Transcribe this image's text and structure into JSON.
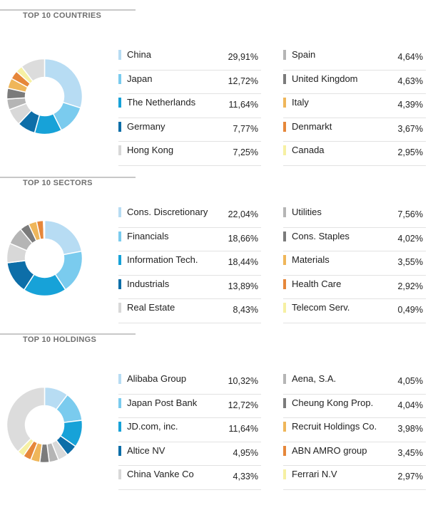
{
  "sections": [
    {
      "title": "TOP 10 COUNTRIES",
      "left": [
        {
          "label": "China",
          "value": "29,91%",
          "color": "#b7dcf3"
        },
        {
          "label": "Japan",
          "value": "12,72%",
          "color": "#7acbee"
        },
        {
          "label": "The Netherlands",
          "value": "11,64%",
          "color": "#17a2d8"
        },
        {
          "label": "Germany",
          "value": "7,77%",
          "color": "#0d6ea8"
        },
        {
          "label": "Hong Kong",
          "value": "7,25%",
          "color": "#d8d8d8"
        }
      ],
      "right": [
        {
          "label": "Spain",
          "value": "4,64%",
          "color": "#b5b5b5"
        },
        {
          "label": "United Kingdom",
          "value": "4,63%",
          "color": "#7b7b7b"
        },
        {
          "label": "Italy",
          "value": "4,39%",
          "color": "#efb65a"
        },
        {
          "label": "Denmarkt",
          "value": "3,67%",
          "color": "#e6873a"
        },
        {
          "label": "Canada",
          "value": "2,95%",
          "color": "#f6f0a3"
        }
      ]
    },
    {
      "title": "TOP 10 SECTORS",
      "left": [
        {
          "label": "Cons. Discretionary",
          "value": "22,04%",
          "color": "#b7dcf3"
        },
        {
          "label": "Financials",
          "value": "18,66%",
          "color": "#7acbee"
        },
        {
          "label": "Information Tech.",
          "value": "18,44%",
          "color": "#17a2d8"
        },
        {
          "label": "Industrials",
          "value": "13,89%",
          "color": "#0d6ea8"
        },
        {
          "label": "Real Estate",
          "value": "8,43%",
          "color": "#d8d8d8"
        }
      ],
      "right": [
        {
          "label": "Utilities",
          "value": "7,56%",
          "color": "#b5b5b5"
        },
        {
          "label": "Cons. Staples",
          "value": "4,02%",
          "color": "#7b7b7b"
        },
        {
          "label": "Materials",
          "value": "3,55%",
          "color": "#efb65a"
        },
        {
          "label": "Health Care",
          "value": "2,92%",
          "color": "#e6873a"
        },
        {
          "label": "Telecom Serv.",
          "value": "0,49%",
          "color": "#f6f0a3"
        }
      ]
    },
    {
      "title": "TOP 10 HOLDINGS",
      "left": [
        {
          "label": "Alibaba Group",
          "value": "10,32%",
          "color": "#b7dcf3"
        },
        {
          "label": "Japan Post Bank",
          "value": "12,72%",
          "color": "#7acbee"
        },
        {
          "label": "JD.com, inc.",
          "value": "11,64%",
          "color": "#17a2d8"
        },
        {
          "label": "Altice NV",
          "value": "4,95%",
          "color": "#0d6ea8"
        },
        {
          "label": "China Vanke Co",
          "value": "4,33%",
          "color": "#d8d8d8"
        }
      ],
      "right": [
        {
          "label": "Aena, S.A.",
          "value": "4,05%",
          "color": "#b5b5b5"
        },
        {
          "label": "Cheung Kong Prop.",
          "value": "4,04%",
          "color": "#7b7b7b"
        },
        {
          "label": "Recruit Holdings Co.",
          "value": "3,98%",
          "color": "#efb65a"
        },
        {
          "label": "ABN AMRO group",
          "value": "3,45%",
          "color": "#e6873a"
        },
        {
          "label": "Ferrari N.V",
          "value": "2,97%",
          "color": "#f6f0a3"
        }
      ]
    }
  ],
  "chart_data": [
    {
      "type": "pie",
      "title": "TOP 10 COUNTRIES",
      "categories": [
        "China",
        "Japan",
        "The Netherlands",
        "Germany",
        "Hong Kong",
        "Spain",
        "United Kingdom",
        "Italy",
        "Denmarkt",
        "Canada",
        "Other"
      ],
      "values": [
        29.91,
        12.72,
        11.64,
        7.77,
        7.25,
        4.64,
        4.63,
        4.39,
        3.67,
        2.95,
        10.43
      ],
      "colors": [
        "#b7dcf3",
        "#7acbee",
        "#17a2d8",
        "#0d6ea8",
        "#d8d8d8",
        "#b5b5b5",
        "#7b7b7b",
        "#efb65a",
        "#e6873a",
        "#f6f0a3",
        "#dcdcdc"
      ]
    },
    {
      "type": "pie",
      "title": "TOP 10 SECTORS",
      "categories": [
        "Cons. Discretionary",
        "Financials",
        "Information Tech.",
        "Industrials",
        "Real Estate",
        "Utilities",
        "Cons. Staples",
        "Materials",
        "Health Care",
        "Telecom Serv."
      ],
      "values": [
        22.04,
        18.66,
        18.44,
        13.89,
        8.43,
        7.56,
        4.02,
        3.55,
        2.92,
        0.49
      ],
      "colors": [
        "#b7dcf3",
        "#7acbee",
        "#17a2d8",
        "#0d6ea8",
        "#d8d8d8",
        "#b5b5b5",
        "#7b7b7b",
        "#efb65a",
        "#e6873a",
        "#f6f0a3"
      ]
    },
    {
      "type": "pie",
      "title": "TOP 10 HOLDINGS",
      "categories": [
        "Alibaba Group",
        "Japan Post Bank",
        "JD.com, inc.",
        "Altice NV",
        "China Vanke Co",
        "Aena, S.A.",
        "Cheung Kong Prop.",
        "Recruit Holdings Co.",
        "ABN AMRO group",
        "Ferrari N.V",
        "Other"
      ],
      "values": [
        10.32,
        12.72,
        11.64,
        4.95,
        4.33,
        4.05,
        4.04,
        3.98,
        3.45,
        2.97,
        37.55
      ],
      "colors": [
        "#b7dcf3",
        "#7acbee",
        "#17a2d8",
        "#0d6ea8",
        "#d8d8d8",
        "#b5b5b5",
        "#7b7b7b",
        "#efb65a",
        "#e6873a",
        "#f6f0a3",
        "#dcdcdc"
      ]
    }
  ]
}
